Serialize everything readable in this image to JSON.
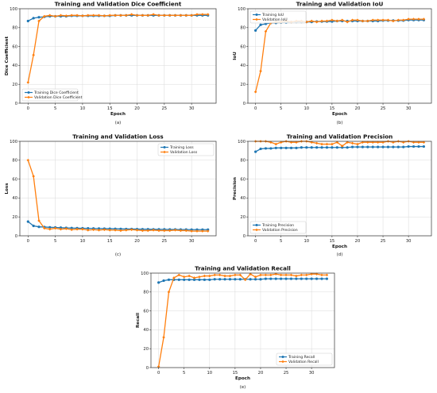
{
  "chart_data": [
    {
      "type": "line",
      "title": "Training and Validation Dice Coefficient",
      "xlabel": "Epoch",
      "ylabel": "Dice Coefficient",
      "caption": "(a)",
      "xlim": [
        -1.5,
        34.5
      ],
      "ylim": [
        0,
        100
      ],
      "xticks": [
        0,
        5,
        10,
        15,
        20,
        25,
        30
      ],
      "yticks": [
        0,
        20,
        40,
        60,
        80,
        100
      ],
      "grid": true,
      "legend": "bottom-left",
      "x": [
        0,
        1,
        2,
        3,
        4,
        5,
        6,
        7,
        8,
        9,
        10,
        11,
        12,
        13,
        14,
        15,
        16,
        17,
        18,
        19,
        20,
        21,
        22,
        23,
        24,
        25,
        26,
        27,
        28,
        29,
        30,
        31,
        32,
        33
      ],
      "series": [
        {
          "name": "Training Dice Coefficient",
          "color": "#1f77b4",
          "values": [
            87,
            90,
            91,
            91.5,
            92,
            92,
            92,
            92,
            92.5,
            92.5,
            92.5,
            92.5,
            92.5,
            92.5,
            92.5,
            92.5,
            93,
            93,
            93,
            93,
            93,
            93,
            93,
            93,
            93,
            93,
            93,
            93,
            93,
            93,
            93,
            93,
            93,
            93
          ]
        },
        {
          "name": "Validation Dice Coefficient",
          "color": "#ff7f0e",
          "values": [
            22,
            51,
            87,
            92,
            93,
            92,
            93,
            92.5,
            93,
            93,
            92.5,
            93,
            93,
            93,
            92.5,
            93,
            93,
            93,
            93,
            94,
            93,
            93,
            93,
            94,
            93,
            93,
            93,
            93,
            93,
            93,
            93,
            94,
            94,
            94
          ]
        }
      ]
    },
    {
      "type": "line",
      "title": "Training and Validation IoU",
      "xlabel": "Epoch",
      "ylabel": "IoU",
      "caption": "(b)",
      "xlim": [
        -1.5,
        34.5
      ],
      "ylim": [
        0,
        100
      ],
      "xticks": [
        0,
        5,
        10,
        15,
        20,
        25,
        30
      ],
      "yticks": [
        0,
        20,
        40,
        60,
        80,
        100
      ],
      "grid": true,
      "legend": "top-left",
      "x": [
        0,
        1,
        2,
        3,
        4,
        5,
        6,
        7,
        8,
        9,
        10,
        11,
        12,
        13,
        14,
        15,
        16,
        17,
        18,
        19,
        20,
        21,
        22,
        23,
        24,
        25,
        26,
        27,
        28,
        29,
        30,
        31,
        32,
        33
      ],
      "series": [
        {
          "name": "Training IoU",
          "color": "#1f77b4",
          "values": [
            77,
            83,
            84,
            85,
            85,
            85.5,
            85.5,
            86,
            86,
            86,
            86,
            86,
            86.5,
            86.5,
            86.5,
            86.5,
            87,
            87,
            87,
            87,
            87,
            87,
            87,
            87,
            87,
            87.5,
            87.5,
            87.5,
            87.5,
            87.5,
            88,
            88,
            88,
            88
          ]
        },
        {
          "name": "Validation IoU",
          "color": "#ff7f0e",
          "values": [
            12,
            34,
            76,
            85,
            86,
            86,
            87,
            86,
            87,
            87,
            86,
            87,
            86,
            87,
            87,
            88,
            87,
            88,
            86,
            88,
            88,
            87,
            87,
            88,
            88,
            88,
            88,
            87,
            88,
            88,
            89,
            89,
            89,
            89
          ]
        }
      ]
    },
    {
      "type": "line",
      "title": "Training and Validation Loss",
      "xlabel": "",
      "ylabel": "Loss",
      "caption": "(c)",
      "xlim": [
        -1.5,
        34.5
      ],
      "ylim": [
        0,
        100
      ],
      "xticks": [
        0,
        5,
        10,
        15,
        20,
        25,
        30
      ],
      "yticks": [
        0,
        20,
        40,
        60,
        80,
        100
      ],
      "grid": true,
      "legend": "top-right",
      "x": [
        0,
        1,
        2,
        3,
        4,
        5,
        6,
        7,
        8,
        9,
        10,
        11,
        12,
        13,
        14,
        15,
        16,
        17,
        18,
        19,
        20,
        21,
        22,
        23,
        24,
        25,
        26,
        27,
        28,
        29,
        30,
        31,
        32,
        33
      ],
      "series": [
        {
          "name": "Training Loss",
          "color": "#1f77b4",
          "values": [
            15,
            10.5,
            9.5,
            9.3,
            9,
            8.8,
            8.6,
            8.4,
            8.2,
            8.1,
            8,
            7.9,
            7.8,
            7.7,
            7.6,
            7.5,
            7.4,
            7.3,
            7.2,
            7.2,
            7.1,
            7,
            7,
            6.9,
            6.8,
            6.8,
            6.7,
            6.7,
            6.6,
            6.6,
            6.5,
            6.5,
            6.5,
            6.5
          ]
        },
        {
          "name": "Validation Loss",
          "color": "#ff7f0e",
          "values": [
            80,
            63,
            16,
            8,
            7,
            8,
            7,
            7.5,
            6.5,
            7,
            7,
            6,
            6.5,
            6,
            6.5,
            6,
            6,
            5.5,
            6,
            6.5,
            6,
            5.5,
            5.5,
            6,
            5.5,
            5.5,
            5.5,
            6,
            5.5,
            5.5,
            5,
            5,
            5,
            5
          ]
        }
      ]
    },
    {
      "type": "line",
      "title": "Training and Validation Precision",
      "xlabel": "Epoch",
      "ylabel": "Precision",
      "caption": "(d)",
      "xlim": [
        -1.5,
        34.5
      ],
      "ylim": [
        0,
        100
      ],
      "xticks": [
        0,
        5,
        10,
        15,
        20,
        25,
        30
      ],
      "yticks": [
        0,
        20,
        40,
        60,
        80,
        100
      ],
      "grid": true,
      "legend": "bottom-left",
      "x": [
        0,
        1,
        2,
        3,
        4,
        5,
        6,
        7,
        8,
        9,
        10,
        11,
        12,
        13,
        14,
        15,
        16,
        17,
        18,
        19,
        20,
        21,
        22,
        23,
        24,
        25,
        26,
        27,
        28,
        29,
        30,
        31,
        32,
        33
      ],
      "series": [
        {
          "name": "Training Precision",
          "color": "#1f77b4",
          "values": [
            89,
            92,
            92.5,
            92.5,
            93,
            93,
            93,
            93,
            93,
            93.5,
            93.5,
            93.5,
            93.5,
            93.5,
            93.5,
            93.5,
            93.5,
            93.5,
            93.5,
            94,
            94,
            94,
            94,
            94,
            94,
            94,
            94,
            94,
            94,
            94,
            94.5,
            94.5,
            94.5,
            94.5
          ]
        },
        {
          "name": "Validation Precision",
          "color": "#ff7f0e",
          "values": [
            100,
            100,
            100,
            99,
            97,
            99,
            100,
            99,
            99,
            100,
            100,
            99,
            98,
            97,
            97,
            97,
            99,
            95,
            99,
            98,
            97,
            99,
            99,
            99,
            99,
            99,
            100,
            99,
            100,
            99,
            100,
            99,
            99,
            99
          ]
        }
      ]
    },
    {
      "type": "line",
      "title": "Training and Validation Recall",
      "xlabel": "Epoch",
      "ylabel": "Recall",
      "caption": "(e)",
      "xlim": [
        -1.5,
        34.5
      ],
      "ylim": [
        0,
        100
      ],
      "xticks": [
        0,
        5,
        10,
        15,
        20,
        25,
        30
      ],
      "yticks": [
        0,
        20,
        40,
        60,
        80,
        100
      ],
      "grid": true,
      "legend": "bottom-right",
      "x": [
        0,
        1,
        2,
        3,
        4,
        5,
        6,
        7,
        8,
        9,
        10,
        11,
        12,
        13,
        14,
        15,
        16,
        17,
        18,
        19,
        20,
        21,
        22,
        23,
        24,
        25,
        26,
        27,
        28,
        29,
        30,
        31,
        32,
        33
      ],
      "series": [
        {
          "name": "Training Recall",
          "color": "#1f77b4",
          "values": [
            90,
            92,
            93,
            93,
            93,
            93,
            93,
            93,
            93,
            93,
            93,
            93.5,
            93.5,
            93.5,
            93.5,
            93.5,
            93.5,
            93.5,
            93.5,
            93.5,
            93.5,
            94,
            94,
            94,
            94,
            94,
            94,
            94,
            94,
            94,
            94,
            94,
            94,
            94
          ]
        },
        {
          "name": "Validation Recall",
          "color": "#ff7f0e",
          "values": [
            1,
            32,
            80,
            95,
            98,
            96,
            97,
            95,
            96,
            97,
            97,
            98,
            98,
            97,
            97,
            98,
            98,
            93,
            99,
            96,
            98,
            98,
            98,
            99,
            98,
            98,
            98,
            97,
            98,
            98,
            99,
            99,
            98,
            98
          ]
        }
      ]
    }
  ]
}
